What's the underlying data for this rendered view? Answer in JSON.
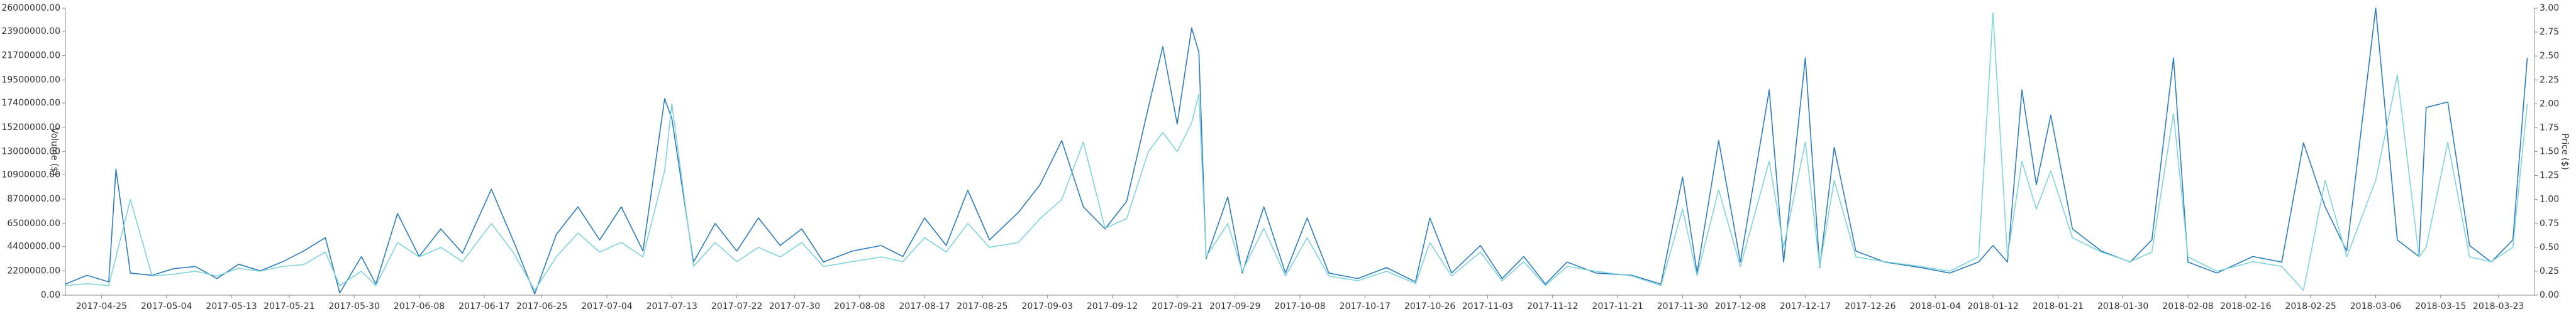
{
  "chart_data": {
    "type": "line",
    "y_label": "Volume ($)",
    "y2_label": "Price ($)",
    "xlim": [
      "2017-04-20",
      "2018-03-28"
    ],
    "xticks": [
      "2017-04-25",
      "2017-05-04",
      "2017-05-13",
      "2017-05-21",
      "2017-05-30",
      "2017-06-08",
      "2017-06-17",
      "2017-06-25",
      "2017-07-04",
      "2017-07-13",
      "2017-07-22",
      "2017-07-30",
      "2017-08-08",
      "2017-08-17",
      "2017-08-25",
      "2017-09-03",
      "2017-09-12",
      "2017-09-21",
      "2017-09-29",
      "2017-10-08",
      "2017-10-17",
      "2017-10-26",
      "2017-11-03",
      "2017-11-12",
      "2017-11-21",
      "2017-11-30",
      "2017-12-08",
      "2017-12-17",
      "2017-12-26",
      "2018-01-04",
      "2018-01-12",
      "2018-01-21",
      "2018-01-30",
      "2018-02-08",
      "2018-02-16",
      "2018-02-25",
      "2018-03-06",
      "2018-03-15",
      "2018-03-23"
    ],
    "ylim": [
      0,
      26000000
    ],
    "yticks": [
      {
        "value": 0,
        "label": "0.00"
      },
      {
        "value": 2200000,
        "label": "2200000.00"
      },
      {
        "value": 4400000,
        "label": "4400000.00"
      },
      {
        "value": 6500000,
        "label": "6500000.00"
      },
      {
        "value": 8700000,
        "label": "8700000.00"
      },
      {
        "value": 10900000,
        "label": "10900000.00"
      },
      {
        "value": 13000000,
        "label": "13000000.00"
      },
      {
        "value": 15200000,
        "label": "15200000.00"
      },
      {
        "value": 17400000,
        "label": "17400000.00"
      },
      {
        "value": 19500000,
        "label": "19500000.00"
      },
      {
        "value": 21700000,
        "label": "21700000.00"
      },
      {
        "value": 23900000,
        "label": "23900000.00"
      },
      {
        "value": 26000000,
        "label": "26000000.00"
      }
    ],
    "y2lim": [
      0,
      3
    ],
    "y2ticks": [
      {
        "value": 0,
        "label": "0.00"
      },
      {
        "value": 0.25,
        "label": "0.25"
      },
      {
        "value": 0.5,
        "label": "0.50"
      },
      {
        "value": 0.75,
        "label": "0.75"
      },
      {
        "value": 1,
        "label": "1.00"
      },
      {
        "value": 1.25,
        "label": "1.25"
      },
      {
        "value": 1.5,
        "label": "1.50"
      },
      {
        "value": 1.75,
        "label": "1.75"
      },
      {
        "value": 2,
        "label": "2.00"
      },
      {
        "value": 2.25,
        "label": "2.25"
      },
      {
        "value": 2.5,
        "label": "2.50"
      },
      {
        "value": 2.75,
        "label": "2.75"
      },
      {
        "value": 3,
        "label": "3.00"
      }
    ],
    "x": [
      "2017-04-20",
      "2017-04-23",
      "2017-04-26",
      "2017-04-27",
      "2017-04-29",
      "2017-05-02",
      "2017-05-05",
      "2017-05-08",
      "2017-05-11",
      "2017-05-14",
      "2017-05-17",
      "2017-05-20",
      "2017-05-23",
      "2017-05-26",
      "2017-05-28",
      "2017-05-31",
      "2017-06-02",
      "2017-06-05",
      "2017-06-08",
      "2017-06-11",
      "2017-06-14",
      "2017-06-18",
      "2017-06-21",
      "2017-06-24",
      "2017-06-27",
      "2017-06-30",
      "2017-07-03",
      "2017-07-06",
      "2017-07-09",
      "2017-07-12",
      "2017-07-13",
      "2017-07-16",
      "2017-07-19",
      "2017-07-22",
      "2017-07-25",
      "2017-07-28",
      "2017-07-31",
      "2017-08-03",
      "2017-08-07",
      "2017-08-11",
      "2017-08-14",
      "2017-08-17",
      "2017-08-20",
      "2017-08-23",
      "2017-08-26",
      "2017-08-30",
      "2017-09-02",
      "2017-09-05",
      "2017-09-08",
      "2017-09-11",
      "2017-09-14",
      "2017-09-17",
      "2017-09-19",
      "2017-09-21",
      "2017-09-23",
      "2017-09-24",
      "2017-09-25",
      "2017-09-28",
      "2017-09-30",
      "2017-10-03",
      "2017-10-06",
      "2017-10-09",
      "2017-10-12",
      "2017-10-16",
      "2017-10-20",
      "2017-10-24",
      "2017-10-26",
      "2017-10-29",
      "2017-11-02",
      "2017-11-05",
      "2017-11-08",
      "2017-11-11",
      "2017-11-14",
      "2017-11-18",
      "2017-11-23",
      "2017-11-27",
      "2017-11-30",
      "2017-12-02",
      "2017-12-05",
      "2017-12-08",
      "2017-12-12",
      "2017-12-14",
      "2017-12-17",
      "2017-12-19",
      "2017-12-21",
      "2017-12-24",
      "2017-12-28",
      "2018-01-02",
      "2018-01-06",
      "2018-01-10",
      "2018-01-12",
      "2018-01-14",
      "2018-01-16",
      "2018-01-18",
      "2018-01-20",
      "2018-01-23",
      "2018-01-27",
      "2018-01-31",
      "2018-02-03",
      "2018-02-06",
      "2018-02-08",
      "2018-02-12",
      "2018-02-17",
      "2018-02-21",
      "2018-02-24",
      "2018-02-27",
      "2018-03-02",
      "2018-03-06",
      "2018-03-09",
      "2018-03-12",
      "2018-03-13",
      "2018-03-16",
      "2018-03-19",
      "2018-03-22",
      "2018-03-25",
      "2018-03-27"
    ],
    "series": [
      {
        "name": "Volume",
        "color": "#2b7bbf",
        "values": [
          1000000,
          1800000,
          1200000,
          11400000,
          2000000,
          1800000,
          2400000,
          2600000,
          1500000,
          2800000,
          2200000,
          3000000,
          4000000,
          5200000,
          200000,
          3500000,
          1000000,
          7400000,
          3500000,
          6000000,
          3800000,
          9600000,
          5000000,
          100000,
          5500000,
          8000000,
          5000000,
          8000000,
          4000000,
          17800000,
          16000000,
          3000000,
          6500000,
          4000000,
          7000000,
          4500000,
          6000000,
          3000000,
          4000000,
          4500000,
          3500000,
          7000000,
          4500000,
          9500000,
          5000000,
          7500000,
          10000000,
          14000000,
          8000000,
          6000000,
          8500000,
          17000000,
          22500000,
          15500000,
          24200000,
          22000000,
          3300000,
          8900000,
          2000000,
          8000000,
          2000000,
          7000000,
          2000000,
          1500000,
          2500000,
          1200000,
          7000000,
          2000000,
          4500000,
          1500000,
          3500000,
          1000000,
          3000000,
          2000000,
          1800000,
          1000000,
          10700000,
          2000000,
          14000000,
          3000000,
          18600000,
          3000000,
          21500000,
          2500000,
          13400000,
          4000000,
          3000000,
          2500000,
          2000000,
          3000000,
          4500000,
          3000000,
          18600000,
          10000000,
          16300000,
          6000000,
          4000000,
          3000000,
          5000000,
          21500000,
          3000000,
          2000000,
          3500000,
          3000000,
          13800000,
          8000000,
          4000000,
          26000000,
          5000000,
          3500000,
          17000000,
          17500000,
          4500000,
          3000000,
          5000000,
          21500000
        ]
      },
      {
        "name": "Price",
        "color": "#7fd3dc",
        "axis": "y2",
        "values": [
          0.1,
          0.12,
          0.1,
          0.4,
          1.0,
          0.2,
          0.22,
          0.25,
          0.2,
          0.28,
          0.25,
          0.3,
          0.32,
          0.45,
          0.1,
          0.25,
          0.1,
          0.55,
          0.4,
          0.5,
          0.35,
          0.75,
          0.45,
          0.05,
          0.4,
          0.65,
          0.45,
          0.55,
          0.4,
          1.3,
          2.0,
          0.3,
          0.55,
          0.35,
          0.5,
          0.4,
          0.55,
          0.3,
          0.35,
          0.4,
          0.35,
          0.6,
          0.45,
          0.75,
          0.5,
          0.55,
          0.8,
          1.0,
          1.6,
          0.7,
          0.8,
          1.5,
          1.7,
          1.5,
          1.8,
          2.1,
          0.4,
          0.75,
          0.25,
          0.7,
          0.2,
          0.6,
          0.2,
          0.15,
          0.25,
          0.12,
          0.55,
          0.2,
          0.45,
          0.15,
          0.35,
          0.1,
          0.3,
          0.25,
          0.2,
          0.1,
          0.9,
          0.2,
          1.1,
          0.3,
          1.4,
          0.5,
          1.6,
          0.3,
          1.2,
          0.4,
          0.35,
          0.3,
          0.25,
          0.4,
          2.95,
          0.4,
          1.4,
          0.9,
          1.3,
          0.6,
          0.45,
          0.35,
          0.45,
          1.9,
          0.4,
          0.25,
          0.35,
          0.3,
          0.05,
          1.2,
          0.4,
          1.2,
          2.3,
          0.4,
          0.5,
          1.6,
          0.4,
          0.35,
          0.5,
          2.0
        ]
      }
    ]
  }
}
